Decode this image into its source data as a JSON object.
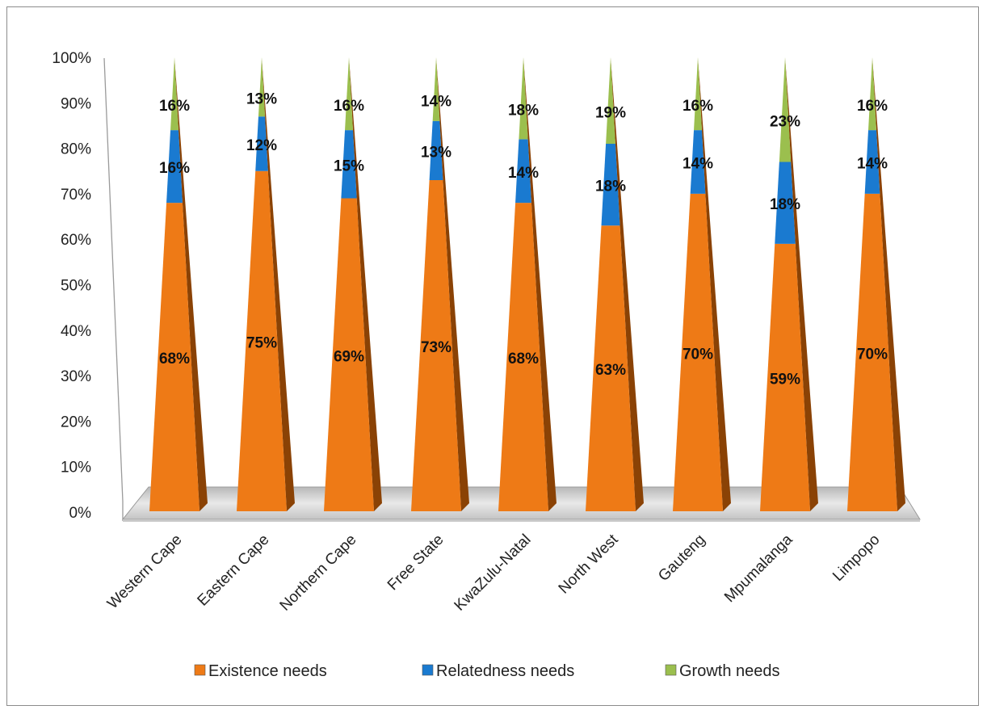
{
  "chart_data": {
    "type": "bar",
    "style": "3d-stacked-percent-cone",
    "title": "",
    "xlabel": "",
    "ylabel": "",
    "ylim": [
      0,
      100
    ],
    "y_ticks": [
      "0%",
      "10%",
      "20%",
      "30%",
      "40%",
      "50%",
      "60%",
      "70%",
      "80%",
      "90%",
      "100%"
    ],
    "categories": [
      "Western Cape",
      "Eastern Cape",
      "Northern Cape",
      "Free State",
      "KwaZulu-Natal",
      "North West",
      "Gauteng",
      "Mpumalanga",
      "Limpopo"
    ],
    "series": [
      {
        "name": "Existence needs",
        "color": "#ee7a16",
        "values": [
          68,
          75,
          69,
          73,
          68,
          63,
          70,
          59,
          70
        ],
        "labels": [
          "68%",
          "75%",
          "69%",
          "73%",
          "68%",
          "63%",
          "70%",
          "59%",
          "70%"
        ]
      },
      {
        "name": "Relatedness needs",
        "color": "#1a7ad0",
        "values": [
          16,
          12,
          15,
          13,
          14,
          18,
          14,
          18,
          14
        ],
        "labels": [
          "16%",
          "12%",
          "15%",
          "13%",
          "14%",
          "18%",
          "14%",
          "18%",
          "14%"
        ]
      },
      {
        "name": "Growth needs",
        "color": "#9bbf4e",
        "values": [
          16,
          13,
          16,
          14,
          18,
          19,
          16,
          23,
          16
        ],
        "labels": [
          "16%",
          "13%",
          "16%",
          "14%",
          "18%",
          "19%",
          "16%",
          "23%",
          "16%"
        ]
      }
    ],
    "grid": false,
    "legend_position": "bottom"
  }
}
